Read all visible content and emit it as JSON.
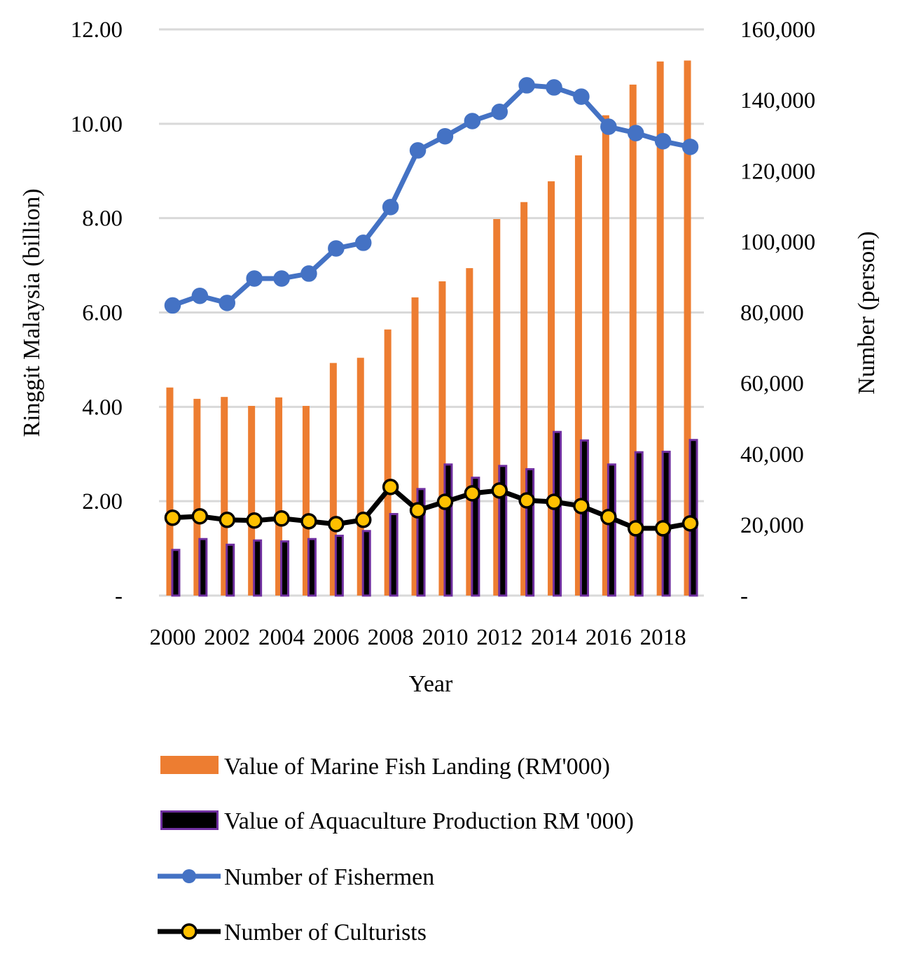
{
  "chart_data": {
    "type": "bar",
    "title": "",
    "xlabel": "Year",
    "ylabel": "Ringgit Malaysia (billion)",
    "y2label": "Number (person)",
    "ylim": [
      0,
      12
    ],
    "y2lim": [
      0,
      160000
    ],
    "grid": true,
    "legend_placement": "bottom",
    "yticks": [
      "-",
      "2.00",
      "4.00",
      "6.00",
      "8.00",
      "10.00",
      "12.00"
    ],
    "y2ticks": [
      "-",
      "20,000",
      "40,000",
      "60,000",
      "80,000",
      "100,000",
      "120,000",
      "140,000",
      "160,000"
    ],
    "categories": [
      2000,
      2001,
      2002,
      2003,
      2004,
      2005,
      2006,
      2007,
      2008,
      2009,
      2010,
      2011,
      2012,
      2013,
      2014,
      2015,
      2016,
      2017,
      2018,
      2019
    ],
    "xtick_labels": [
      "2000",
      "2002",
      "2004",
      "2006",
      "2008",
      "2010",
      "2012",
      "2014",
      "2016",
      "2018"
    ],
    "series": [
      {
        "name": "Value of Marine Fish Landing  (RM'000)",
        "type": "bar",
        "axis": "left",
        "color": "#ED7D31",
        "values": [
          4.41,
          4.17,
          4.21,
          4.02,
          4.2,
          4.02,
          4.93,
          5.04,
          5.64,
          6.32,
          6.66,
          6.94,
          7.98,
          8.34,
          8.78,
          9.33,
          10.18,
          10.83,
          11.32,
          11.34
        ]
      },
      {
        "name": "Value of Aquaculture Production RM '000)",
        "type": "bar",
        "axis": "left",
        "color": "#000000",
        "edge_color": "#7030A0",
        "values": [
          0.99,
          1.22,
          1.1,
          1.19,
          1.17,
          1.22,
          1.29,
          1.39,
          1.75,
          2.28,
          2.8,
          2.52,
          2.77,
          2.7,
          3.49,
          3.31,
          2.8,
          3.06,
          3.07,
          3.32
        ]
      },
      {
        "name": "Number of Fishermen",
        "type": "line",
        "axis": "right",
        "color": "#4472C4",
        "values": [
          82000,
          84700,
          82700,
          89600,
          89600,
          91000,
          98100,
          99700,
          109800,
          125800,
          129800,
          134100,
          136700,
          144200,
          143600,
          141000,
          132500,
          130700,
          128400,
          126800
        ]
      },
      {
        "name": "Number of Culturists",
        "type": "line",
        "axis": "right",
        "color": "#000000",
        "marker_color": "#FFC000",
        "values": [
          22000,
          22400,
          21400,
          21200,
          21800,
          21000,
          20200,
          21400,
          30700,
          24100,
          26500,
          28900,
          29700,
          26900,
          26500,
          25300,
          22200,
          19000,
          19000,
          20400
        ]
      }
    ]
  }
}
